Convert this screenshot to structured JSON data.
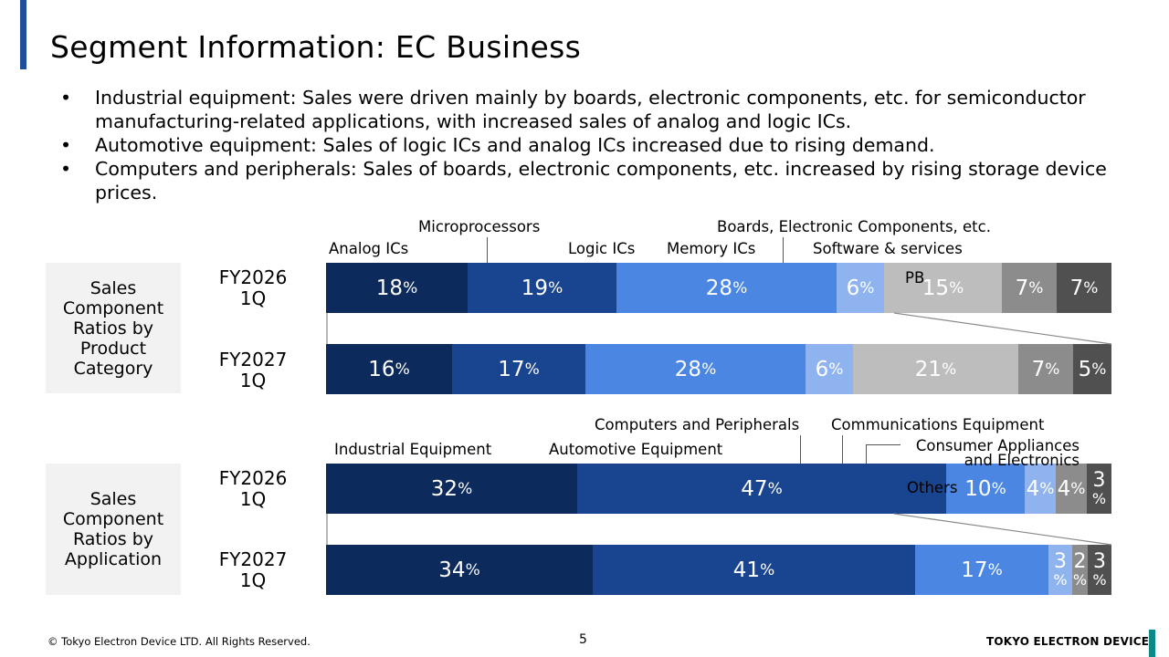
{
  "title": "Segment Information: EC Business",
  "bullets": [
    "Industrial equipment: Sales were driven mainly by boards, electronic components, etc. for semiconductor manufacturing-related applications, with increased sales of analog and logic ICs.",
    "Automotive equipment: Sales of logic ICs and analog ICs increased due to rising demand.",
    "Computers and peripherals: Sales of boards, electronic components, etc. increased by rising storage device prices."
  ],
  "pct_sign": "%",
  "chart_data": [
    {
      "type": "bar",
      "stacked": true,
      "orientation": "horizontal",
      "row_group_label": "Sales Component Ratios by Product Category",
      "categories": [
        "FY2026 1Q",
        "FY2027 1Q"
      ],
      "series": [
        {
          "name": "Analog ICs",
          "values": [
            18,
            16
          ],
          "color": "#0d2a5c"
        },
        {
          "name": "Microprocessors",
          "values": [
            19,
            17
          ],
          "color": "#19448f"
        },
        {
          "name": "Logic ICs",
          "values": [
            28,
            28
          ],
          "color": "#4a86e2"
        },
        {
          "name": "Memory ICs",
          "values": [
            6,
            6
          ],
          "color": "#8fb3ee"
        },
        {
          "name": "Boards, Electronic Components, etc.",
          "values": [
            15,
            21
          ],
          "color": "#bdbdbd"
        },
        {
          "name": "Software & services",
          "values": [
            7,
            7
          ],
          "color": "#8c8c8c"
        },
        {
          "name": "PB",
          "values": [
            7,
            5
          ],
          "color": "#505050"
        }
      ]
    },
    {
      "type": "bar",
      "stacked": true,
      "orientation": "horizontal",
      "row_group_label": "Sales Component Ratios by Application",
      "categories": [
        "FY2026 1Q",
        "FY2027 1Q"
      ],
      "series": [
        {
          "name": "Industrial Equipment",
          "values": [
            32,
            34
          ],
          "color": "#0d2a5c"
        },
        {
          "name": "Automotive Equipment",
          "values": [
            47,
            41
          ],
          "color": "#19448f"
        },
        {
          "name": "Computers and Peripherals",
          "values": [
            10,
            17
          ],
          "color": "#4a86e2"
        },
        {
          "name": "Communications Equipment",
          "values": [
            4,
            3
          ],
          "color": "#8fb3ee"
        },
        {
          "name": "Consumer Appliances and Electronics",
          "values": [
            4,
            2
          ],
          "color": "#8c8c8c"
        },
        {
          "name": "Others",
          "values": [
            3,
            3
          ],
          "color": "#505050"
        }
      ]
    }
  ],
  "footer": {
    "copyright": "© Tokyo Electron Device LTD. All Rights Reserved.",
    "page": "5",
    "brand": "TOKYO ELECTRON DEVICE"
  }
}
